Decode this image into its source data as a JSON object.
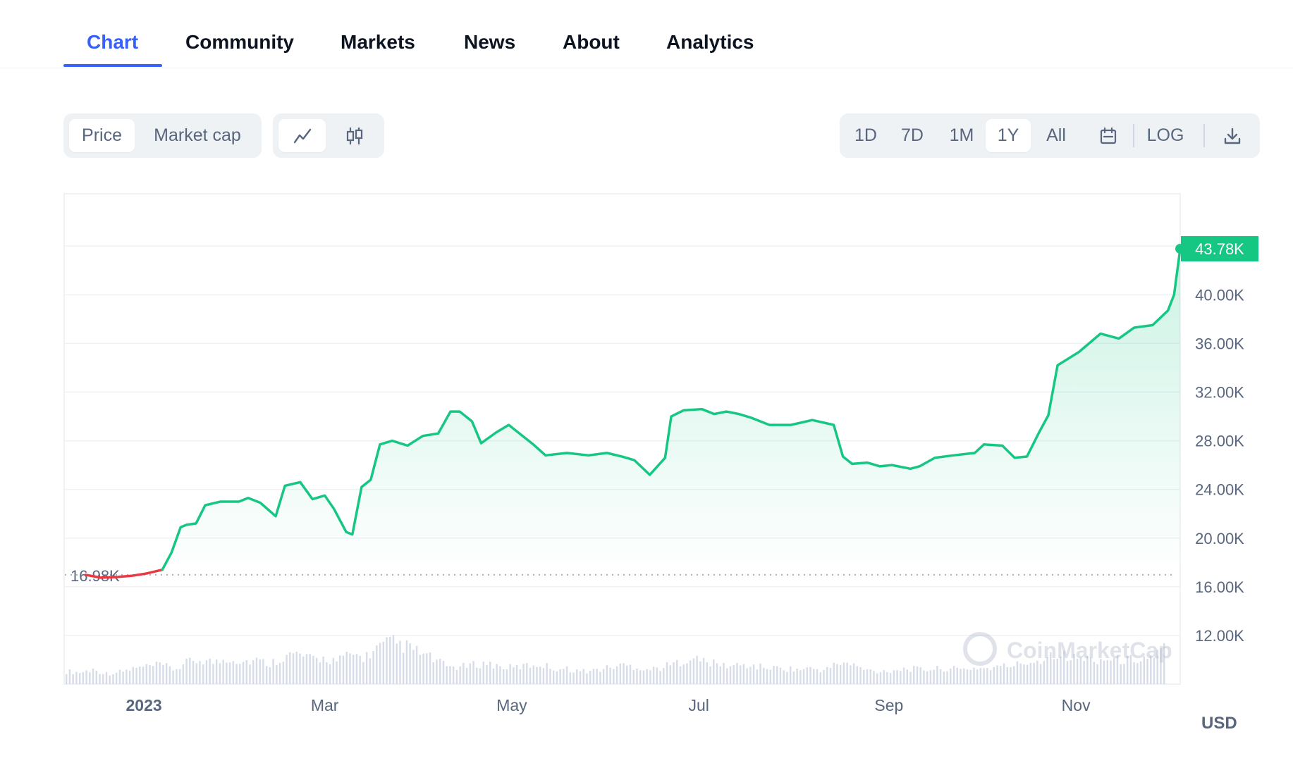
{
  "tabs": [
    {
      "label": "Chart",
      "active": true
    },
    {
      "label": "Community"
    },
    {
      "label": "Markets"
    },
    {
      "label": "News"
    },
    {
      "label": "About"
    },
    {
      "label": "Analytics"
    }
  ],
  "toolbar": {
    "metric_options": [
      "Price",
      "Market cap"
    ],
    "metric_selected": "Price",
    "chart_style_icons": [
      "line-chart-icon",
      "candlestick-icon"
    ],
    "chart_style_selected": "line-chart-icon",
    "ranges": [
      "1D",
      "7D",
      "1M",
      "1Y",
      "All"
    ],
    "range_selected": "1Y",
    "calendar_icon": "calendar-icon",
    "log_label": "LOG",
    "download_icon": "download-icon"
  },
  "chart_data": {
    "type": "line",
    "series": [
      {
        "x": [
          "2022-12-13",
          "2022-12-18",
          "2022-12-23",
          "2022-12-28",
          "2023-01-02",
          "2023-01-07",
          "2023-01-10",
          "2023-01-13",
          "2023-01-15",
          "2023-01-18",
          "2023-01-21",
          "2023-01-26",
          "2023-02-01",
          "2023-02-04",
          "2023-02-08",
          "2023-02-13",
          "2023-02-16",
          "2023-02-21",
          "2023-02-25",
          "2023-03-01",
          "2023-03-04",
          "2023-03-08",
          "2023-03-10",
          "2023-03-13",
          "2023-03-16",
          "2023-03-19",
          "2023-03-23",
          "2023-03-28",
          "2023-04-02",
          "2023-04-07",
          "2023-04-11",
          "2023-04-14",
          "2023-04-18",
          "2023-04-21",
          "2023-04-26",
          "2023-04-30",
          "2023-05-03",
          "2023-05-08",
          "2023-05-12",
          "2023-05-19",
          "2023-05-26",
          "2023-06-01",
          "2023-06-06",
          "2023-06-10",
          "2023-06-15",
          "2023-06-20",
          "2023-06-22",
          "2023-06-26",
          "2023-07-02",
          "2023-07-06",
          "2023-07-10",
          "2023-07-14",
          "2023-07-18",
          "2023-07-24",
          "2023-07-31",
          "2023-08-07",
          "2023-08-14",
          "2023-08-17",
          "2023-08-20",
          "2023-08-25",
          "2023-08-29",
          "2023-09-02",
          "2023-09-08",
          "2023-09-11",
          "2023-09-16",
          "2023-09-22",
          "2023-09-29",
          "2023-10-02",
          "2023-10-08",
          "2023-10-12",
          "2023-10-16",
          "2023-10-20",
          "2023-10-23",
          "2023-10-26",
          "2023-11-02",
          "2023-11-09",
          "2023-11-15",
          "2023-11-20",
          "2023-11-26",
          "2023-12-01",
          "2023-12-03",
          "2023-12-05"
        ],
        "y": [
          16980,
          16750,
          16800,
          16900,
          17100,
          17400,
          18800,
          20900,
          21100,
          21200,
          22700,
          23000,
          23000,
          23300,
          22900,
          21800,
          24300,
          24600,
          23200,
          23500,
          22400,
          20500,
          20300,
          24200,
          24800,
          27700,
          28000,
          27600,
          28400,
          28600,
          30400,
          30400,
          29600,
          27800,
          28700,
          29300,
          28700,
          27700,
          26800,
          27000,
          26800,
          27000,
          26700,
          26400,
          25200,
          26600,
          30000,
          30500,
          30600,
          30200,
          30400,
          30200,
          29900,
          29300,
          29300,
          29700,
          29300,
          26700,
          26100,
          26200,
          25900,
          26000,
          25700,
          25900,
          26600,
          26800,
          27000,
          27700,
          27600,
          26600,
          26700,
          28700,
          30100,
          34200,
          35300,
          36800,
          36400,
          37300,
          37500,
          38700,
          40000,
          43780
        ]
      }
    ],
    "volume": [
      0.22,
      0.2,
      0.25,
      0.18,
      0.21,
      0.27,
      0.3,
      0.33,
      0.25,
      0.38,
      0.42,
      0.37,
      0.45,
      0.39,
      0.41,
      0.35,
      0.47,
      0.52,
      0.43,
      0.44,
      0.4,
      0.51,
      0.46,
      0.62,
      0.72,
      0.65,
      0.55,
      0.44,
      0.31,
      0.29,
      0.33,
      0.36,
      0.3,
      0.28,
      0.32,
      0.34,
      0.27,
      0.26,
      0.22,
      0.24,
      0.28,
      0.33,
      0.3,
      0.25,
      0.29,
      0.36,
      0.45,
      0.4,
      0.34,
      0.31,
      0.33,
      0.3,
      0.28,
      0.27,
      0.25,
      0.27,
      0.24,
      0.37,
      0.33,
      0.24,
      0.22,
      0.24,
      0.27,
      0.25,
      0.26,
      0.27,
      0.25,
      0.28,
      0.27,
      0.3,
      0.33,
      0.38,
      0.42,
      0.56,
      0.45,
      0.44,
      0.42,
      0.43,
      0.41,
      0.44,
      0.46,
      0.62
    ],
    "ylabel_ticks": [
      "12.00K",
      "16.00K",
      "20.00K",
      "24.00K",
      "28.00K",
      "32.00K",
      "36.00K",
      "40.00K"
    ],
    "y_ticks": [
      12000,
      16000,
      20000,
      24000,
      28000,
      32000,
      36000,
      40000
    ],
    "x_tick_labels": [
      "2023",
      "Mar",
      "May",
      "Jul",
      "Sep",
      "Nov"
    ],
    "x_ticks": [
      "2023-01-01",
      "2023-03-01",
      "2023-05-01",
      "2023-07-01",
      "2023-09-01",
      "2023-11-01"
    ],
    "ylim": [
      8000,
      48300
    ],
    "xlim": [
      "2022-12-06",
      "2023-12-05"
    ],
    "start_label": "16.98K",
    "start_value": 16980,
    "last_label": "43.78K",
    "last_value": 43780,
    "currency": "USD",
    "watermark": "CoinMarketCap",
    "colors": {
      "up": "#16c784",
      "down": "#ea3943",
      "grid": "#eff2f5",
      "axis_text": "#58667e"
    },
    "grid": true
  }
}
